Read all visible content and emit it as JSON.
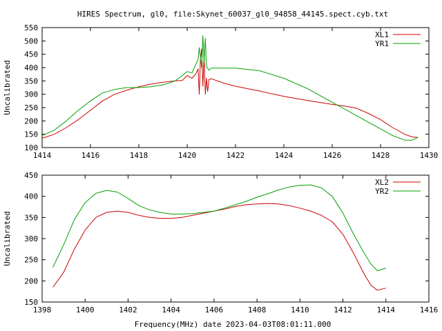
{
  "title": "HIRES Spectrum, gl0, file:Skynet_60037_gl0_94858_44145.spect.cyb.txt",
  "footer": "Frequency(MHz) date 2023-04-03T08:01:11.000",
  "colors": {
    "red": "#cc0000",
    "green": "#00a000",
    "axis": "#000000"
  },
  "chart_data": [
    {
      "type": "line",
      "ylabel": "Uncalibrated",
      "xlim": [
        1414,
        1430
      ],
      "ylim": [
        100,
        550
      ],
      "xticks": [
        1414,
        1416,
        1418,
        1420,
        1422,
        1424,
        1426,
        1428,
        1430
      ],
      "yticks": [
        100,
        150,
        200,
        250,
        300,
        350,
        400,
        450,
        500,
        550
      ],
      "legend_position": "top-right",
      "series": [
        {
          "name": "XL1",
          "color": "#cc0000",
          "points": [
            [
              1414.0,
              135
            ],
            [
              1414.5,
              150
            ],
            [
              1415.0,
              175
            ],
            [
              1415.5,
              205
            ],
            [
              1416.0,
              240
            ],
            [
              1416.5,
              275
            ],
            [
              1417.0,
              300
            ],
            [
              1417.5,
              315
            ],
            [
              1418.0,
              328
            ],
            [
              1418.5,
              338
            ],
            [
              1419.0,
              345
            ],
            [
              1419.5,
              350
            ],
            [
              1419.8,
              352
            ],
            [
              1420.0,
              370
            ],
            [
              1420.2,
              360
            ],
            [
              1420.35,
              375
            ],
            [
              1420.45,
              395
            ],
            [
              1420.5,
              300
            ],
            [
              1420.55,
              430
            ],
            [
              1420.6,
              470
            ],
            [
              1420.65,
              330
            ],
            [
              1420.7,
              440
            ],
            [
              1420.75,
              300
            ],
            [
              1420.8,
              360
            ],
            [
              1420.85,
              310
            ],
            [
              1420.9,
              355
            ],
            [
              1421.0,
              358
            ],
            [
              1421.5,
              342
            ],
            [
              1422.0,
              330
            ],
            [
              1423.0,
              312
            ],
            [
              1424.0,
              292
            ],
            [
              1425.0,
              276
            ],
            [
              1426.0,
              262
            ],
            [
              1426.5,
              256
            ],
            [
              1427.0,
              248
            ],
            [
              1427.5,
              228
            ],
            [
              1428.0,
              205
            ],
            [
              1428.5,
              175
            ],
            [
              1429.0,
              150
            ],
            [
              1429.3,
              140
            ],
            [
              1429.55,
              138
            ]
          ]
        },
        {
          "name": "YR1",
          "color": "#00a000",
          "points": [
            [
              1414.0,
              145
            ],
            [
              1414.5,
              165
            ],
            [
              1415.0,
              200
            ],
            [
              1415.5,
              240
            ],
            [
              1416.0,
              275
            ],
            [
              1416.5,
              305
            ],
            [
              1417.0,
              318
            ],
            [
              1417.5,
              325
            ],
            [
              1418.0,
              325
            ],
            [
              1418.5,
              328
            ],
            [
              1419.0,
              335
            ],
            [
              1419.5,
              350
            ],
            [
              1419.8,
              370
            ],
            [
              1420.0,
              385
            ],
            [
              1420.2,
              380
            ],
            [
              1420.3,
              400
            ],
            [
              1420.45,
              430
            ],
            [
              1420.5,
              475
            ],
            [
              1420.55,
              440
            ],
            [
              1420.6,
              400
            ],
            [
              1420.65,
              520
            ],
            [
              1420.7,
              420
            ],
            [
              1420.75,
              510
            ],
            [
              1420.8,
              405
            ],
            [
              1420.9,
              390
            ],
            [
              1421.0,
              398
            ],
            [
              1422.0,
              398
            ],
            [
              1423.0,
              388
            ],
            [
              1424.0,
              360
            ],
            [
              1425.0,
              320
            ],
            [
              1426.0,
              270
            ],
            [
              1427.0,
              220
            ],
            [
              1428.0,
              170
            ],
            [
              1428.5,
              145
            ],
            [
              1429.0,
              128
            ],
            [
              1429.3,
              128
            ],
            [
              1429.55,
              138
            ]
          ]
        }
      ]
    },
    {
      "type": "line",
      "ylabel": "Uncalibrated",
      "xlim": [
        1398,
        1416
      ],
      "ylim": [
        150,
        450
      ],
      "xticks": [
        1398,
        1400,
        1402,
        1404,
        1406,
        1408,
        1410,
        1412,
        1414,
        1416
      ],
      "yticks": [
        150,
        200,
        250,
        300,
        350,
        400,
        450
      ],
      "legend_position": "top-right",
      "series": [
        {
          "name": "XL2",
          "color": "#cc0000",
          "points": [
            [
              1398.5,
              185
            ],
            [
              1399.0,
              220
            ],
            [
              1399.5,
              275
            ],
            [
              1400.0,
              320
            ],
            [
              1400.5,
              350
            ],
            [
              1401.0,
              362
            ],
            [
              1401.5,
              365
            ],
            [
              1402.0,
              362
            ],
            [
              1402.5,
              355
            ],
            [
              1403.0,
              350
            ],
            [
              1403.5,
              348
            ],
            [
              1404.0,
              348
            ],
            [
              1404.5,
              350
            ],
            [
              1405.0,
              355
            ],
            [
              1405.5,
              360
            ],
            [
              1406.0,
              365
            ],
            [
              1406.5,
              370
            ],
            [
              1407.0,
              376
            ],
            [
              1407.5,
              380
            ],
            [
              1408.0,
              382
            ],
            [
              1408.5,
              383
            ],
            [
              1409.0,
              382
            ],
            [
              1409.5,
              378
            ],
            [
              1410.0,
              372
            ],
            [
              1410.5,
              365
            ],
            [
              1411.0,
              355
            ],
            [
              1411.5,
              340
            ],
            [
              1412.0,
              310
            ],
            [
              1412.5,
              265
            ],
            [
              1413.0,
              215
            ],
            [
              1413.3,
              190
            ],
            [
              1413.6,
              178
            ],
            [
              1414.0,
              183
            ]
          ]
        },
        {
          "name": "YR2",
          "color": "#00a000",
          "points": [
            [
              1398.5,
              232
            ],
            [
              1399.0,
              285
            ],
            [
              1399.5,
              345
            ],
            [
              1400.0,
              385
            ],
            [
              1400.5,
              407
            ],
            [
              1401.0,
              414
            ],
            [
              1401.5,
              410
            ],
            [
              1402.0,
              395
            ],
            [
              1402.5,
              378
            ],
            [
              1403.0,
              368
            ],
            [
              1403.5,
              362
            ],
            [
              1404.0,
              358
            ],
            [
              1404.5,
              358
            ],
            [
              1405.0,
              359
            ],
            [
              1405.5,
              362
            ],
            [
              1406.0,
              365
            ],
            [
              1406.5,
              372
            ],
            [
              1407.0,
              380
            ],
            [
              1407.5,
              388
            ],
            [
              1408.0,
              398
            ],
            [
              1408.5,
              406
            ],
            [
              1409.0,
              415
            ],
            [
              1409.5,
              422
            ],
            [
              1410.0,
              426
            ],
            [
              1410.5,
              427
            ],
            [
              1411.0,
              420
            ],
            [
              1411.5,
              400
            ],
            [
              1412.0,
              360
            ],
            [
              1412.5,
              310
            ],
            [
              1413.0,
              265
            ],
            [
              1413.3,
              240
            ],
            [
              1413.6,
              224
            ],
            [
              1414.0,
              230
            ]
          ]
        }
      ]
    }
  ]
}
